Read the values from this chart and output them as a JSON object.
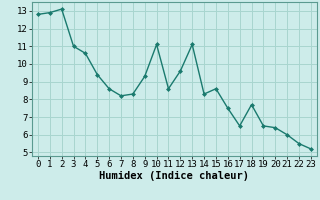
{
  "x": [
    0,
    1,
    2,
    3,
    4,
    5,
    6,
    7,
    8,
    9,
    10,
    11,
    12,
    13,
    14,
    15,
    16,
    17,
    18,
    19,
    20,
    21,
    22,
    23
  ],
  "y": [
    12.8,
    12.9,
    13.1,
    11.0,
    10.6,
    9.4,
    8.6,
    8.2,
    8.3,
    9.3,
    11.1,
    8.6,
    9.6,
    11.1,
    8.3,
    8.6,
    7.5,
    6.5,
    7.7,
    6.5,
    6.4,
    6.0,
    5.5,
    5.2
  ],
  "line_color": "#1a7a6e",
  "marker": "D",
  "marker_size": 2.0,
  "bg_color": "#cdecea",
  "grid_color": "#a8d5cf",
  "xlabel": "Humidex (Indice chaleur)",
  "xlim": [
    -0.5,
    23.5
  ],
  "ylim": [
    4.8,
    13.5
  ],
  "yticks": [
    5,
    6,
    7,
    8,
    9,
    10,
    11,
    12,
    13
  ],
  "xticks": [
    0,
    1,
    2,
    3,
    4,
    5,
    6,
    7,
    8,
    9,
    10,
    11,
    12,
    13,
    14,
    15,
    16,
    17,
    18,
    19,
    20,
    21,
    22,
    23
  ],
  "xlabel_fontsize": 7.5,
  "tick_fontsize": 6.5,
  "line_width": 1.0
}
